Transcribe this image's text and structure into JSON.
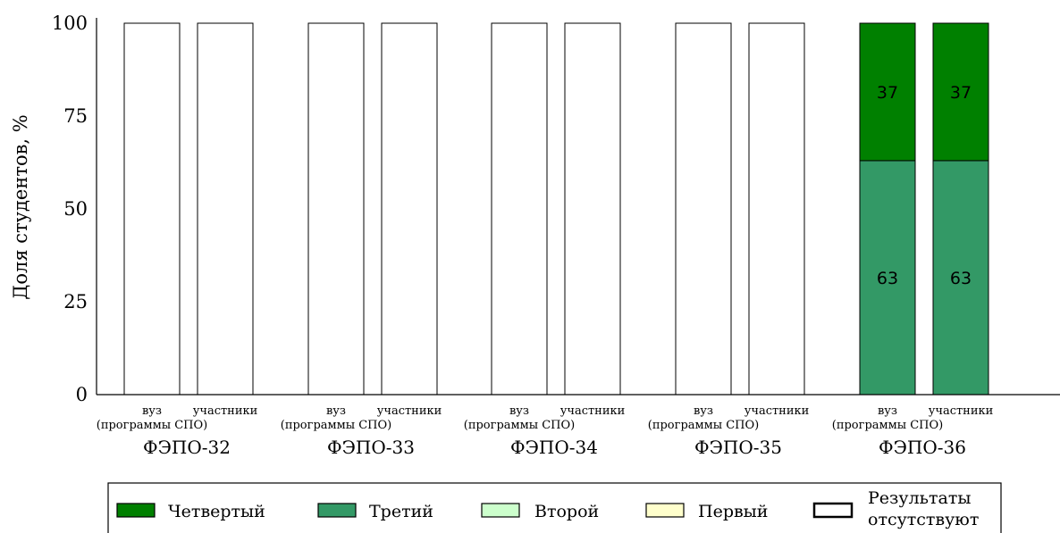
{
  "chart_data": {
    "type": "bar",
    "stacked": true,
    "ylabel": "Доля студентов, %",
    "ylim": [
      0,
      100
    ],
    "yticks": [
      "0",
      "25",
      "50",
      "75",
      "100"
    ],
    "groups": [
      "ФЭПО-32",
      "ФЭПО-33",
      "ФЭПО-34",
      "ФЭПО-35",
      "ФЭПО-36"
    ],
    "subcategories": [
      {
        "line1": "вуз",
        "line2": "(программы СПО)"
      },
      {
        "line1": "участники",
        "line2": ""
      }
    ],
    "series": [
      {
        "key": "fourth",
        "name": "Четвертый",
        "color": "#008000",
        "values": [
          [
            0,
            0
          ],
          [
            0,
            0
          ],
          [
            0,
            0
          ],
          [
            0,
            0
          ],
          [
            37,
            37
          ]
        ],
        "labels": [
          [
            "",
            ""
          ],
          [
            "",
            ""
          ],
          [
            "",
            ""
          ],
          [
            "",
            ""
          ],
          [
            "37",
            "37"
          ]
        ]
      },
      {
        "key": "third",
        "name": "Третий",
        "color": "#339966",
        "values": [
          [
            0,
            0
          ],
          [
            0,
            0
          ],
          [
            0,
            0
          ],
          [
            0,
            0
          ],
          [
            63,
            63
          ]
        ],
        "labels": [
          [
            "",
            ""
          ],
          [
            "",
            ""
          ],
          [
            "",
            ""
          ],
          [
            "",
            ""
          ],
          [
            "63",
            "63"
          ]
        ]
      },
      {
        "key": "second",
        "name": "Второй",
        "color": "#ccffcc",
        "values": [
          [
            0,
            0
          ],
          [
            0,
            0
          ],
          [
            0,
            0
          ],
          [
            0,
            0
          ],
          [
            0,
            0
          ]
        ],
        "labels": [
          [
            "",
            ""
          ],
          [
            "",
            ""
          ],
          [
            "",
            ""
          ],
          [
            "",
            ""
          ],
          [
            "",
            ""
          ]
        ]
      },
      {
        "key": "first",
        "name": "Первый",
        "color": "#ffffcc",
        "values": [
          [
            0,
            0
          ],
          [
            0,
            0
          ],
          [
            0,
            0
          ],
          [
            0,
            0
          ],
          [
            0,
            0
          ]
        ],
        "labels": [
          [
            "",
            ""
          ],
          [
            "",
            ""
          ],
          [
            "",
            ""
          ],
          [
            "",
            ""
          ],
          [
            "",
            ""
          ]
        ]
      },
      {
        "key": "none",
        "name": "Результаты отсутствуют",
        "color": "#ffffff",
        "values": [
          [
            100,
            100
          ],
          [
            100,
            100
          ],
          [
            100,
            100
          ],
          [
            100,
            100
          ],
          [
            0,
            0
          ]
        ],
        "labels": [
          [
            "",
            ""
          ],
          [
            "",
            ""
          ],
          [
            "",
            ""
          ],
          [
            "",
            ""
          ],
          [
            "",
            ""
          ]
        ]
      }
    ],
    "legend": {
      "placement": "bottom",
      "items": [
        {
          "label": "Четвертый",
          "color": "#008000"
        },
        {
          "label": "Третий",
          "color": "#339966"
        },
        {
          "label": "Второй",
          "color": "#ccffcc"
        },
        {
          "label": "Первый",
          "color": "#ffffcc"
        },
        {
          "label_line1": "Результаты",
          "label_line2": "отсутствуют",
          "color": "#ffffff"
        }
      ]
    },
    "grid": false
  }
}
